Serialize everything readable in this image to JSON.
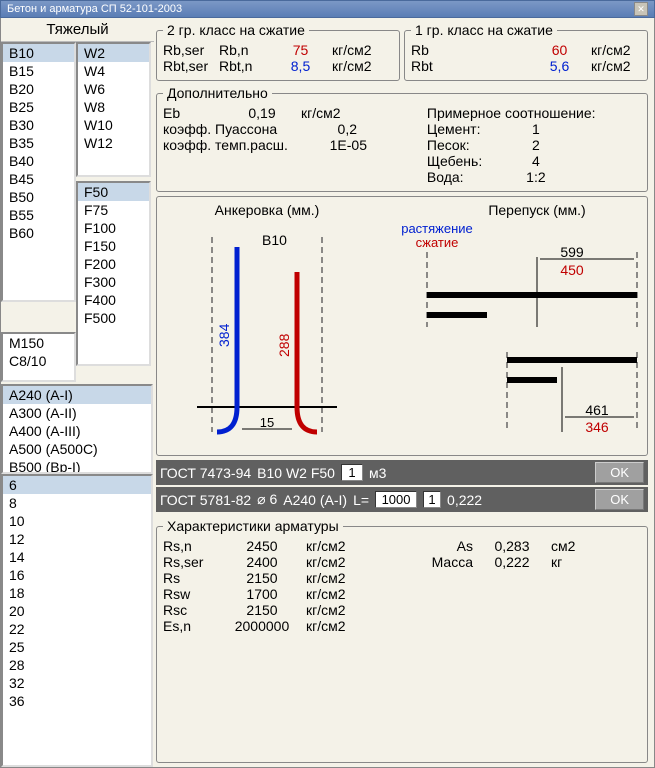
{
  "window": {
    "title": "Бетон и арматура СП 52-101-2003"
  },
  "concrete_type": "Тяжелый",
  "lists": {
    "b": [
      "B10",
      "B15",
      "B20",
      "B25",
      "B30",
      "B35",
      "B40",
      "B45",
      "B50",
      "B55",
      "B60"
    ],
    "b_selected": "B10",
    "w": [
      "W2",
      "W4",
      "W6",
      "W8",
      "W10",
      "W12"
    ],
    "w_selected": "W2",
    "f": [
      "F50",
      "F75",
      "F100",
      "F150",
      "F200",
      "F300",
      "F400",
      "F500"
    ],
    "f_selected": "F50",
    "m": [
      "M150",
      "C8/10"
    ],
    "rebar": [
      "A240 (A-I)",
      "A300 (A-II)",
      "A400 (A-III)",
      "A500 (A500C)",
      "B500 (Bp-I)"
    ],
    "rebar_selected": "A240 (A-I)",
    "diam": [
      "6",
      "8",
      "10",
      "12",
      "14",
      "16",
      "18",
      "20",
      "22",
      "25",
      "28",
      "32",
      "36"
    ],
    "diam_selected": "6"
  },
  "group2": {
    "legend": "2 гр. класс на сжатие",
    "r1": {
      "a": "Rb,ser",
      "b": "Rb,n",
      "v": "75",
      "u": "кг/см2"
    },
    "r2": {
      "a": "Rbt,ser",
      "b": "Rbt,n",
      "v": "8,5",
      "u": "кг/см2"
    }
  },
  "group1": {
    "legend": "1 гр. класс на сжатие",
    "r1": {
      "a": "Rb",
      "v": "60",
      "u": "кг/см2"
    },
    "r2": {
      "a": "Rbt",
      "v": "5,6",
      "u": "кг/см2"
    }
  },
  "additional": {
    "legend": "Дополнительно",
    "eb": {
      "l": "Eb",
      "v": "0,19",
      "u": "кг/см2"
    },
    "poisson": {
      "l": "коэфф. Пуассона",
      "v": "0,2"
    },
    "temp": {
      "l": "коэфф. темп.расш.",
      "v": "1E-05"
    },
    "ratio_title": "Примерное соотношение:",
    "cement": {
      "l": "Цемент:",
      "v": "1"
    },
    "sand": {
      "l": "Песок:",
      "v": "2"
    },
    "gravel": {
      "l": "Щебень:",
      "v": "4"
    },
    "water": {
      "l": "Вода:",
      "v": "1:2"
    }
  },
  "diagram": {
    "anchor_title": "Анкеровка (мм.)",
    "overlap_title": "Перепуск (мм.)",
    "tension": "растяжение",
    "compression": "сжатие",
    "b_label": "B10",
    "blue_val": "384",
    "red_val": "288",
    "base_dim": "15",
    "ov_top_black": "599",
    "ov_top_red": "450",
    "ov_bot_black": "461",
    "ov_bot_red": "346",
    "colors": {
      "blue": "#0020d0",
      "red": "#c00000",
      "black": "#000"
    }
  },
  "gost1": {
    "label": "ГОСТ 7473-94",
    "spec": "B10 W2 F50",
    "qty": "1",
    "unit": "м3",
    "ok": "OK"
  },
  "gost2": {
    "label": "ГОСТ 5781-82",
    "diam": "⌀ 6",
    "cls": "A240 (A-I)",
    "llabel": "L=",
    "lval": "1000",
    "qty": "1",
    "mass": "0,222",
    "ok": "OK"
  },
  "rebar_props": {
    "legend": "Характеристики арматуры",
    "rows": [
      {
        "l": "Rs,n",
        "v": "2450",
        "u": "кг/см2"
      },
      {
        "l": "Rs,ser",
        "v": "2400",
        "u": "кг/см2"
      },
      {
        "l": "Rs",
        "v": "2150",
        "u": "кг/см2"
      },
      {
        "l": "Rsw",
        "v": "1700",
        "u": "кг/см2"
      },
      {
        "l": "Rsc",
        "v": "2150",
        "u": "кг/см2"
      },
      {
        "l": "Es,n",
        "v": "2000000",
        "u": "кг/см2"
      }
    ],
    "as": {
      "l": "As",
      "v": "0,283",
      "u": "см2"
    },
    "mass": {
      "l": "Масса",
      "v": "0,222",
      "u": "кг"
    }
  }
}
